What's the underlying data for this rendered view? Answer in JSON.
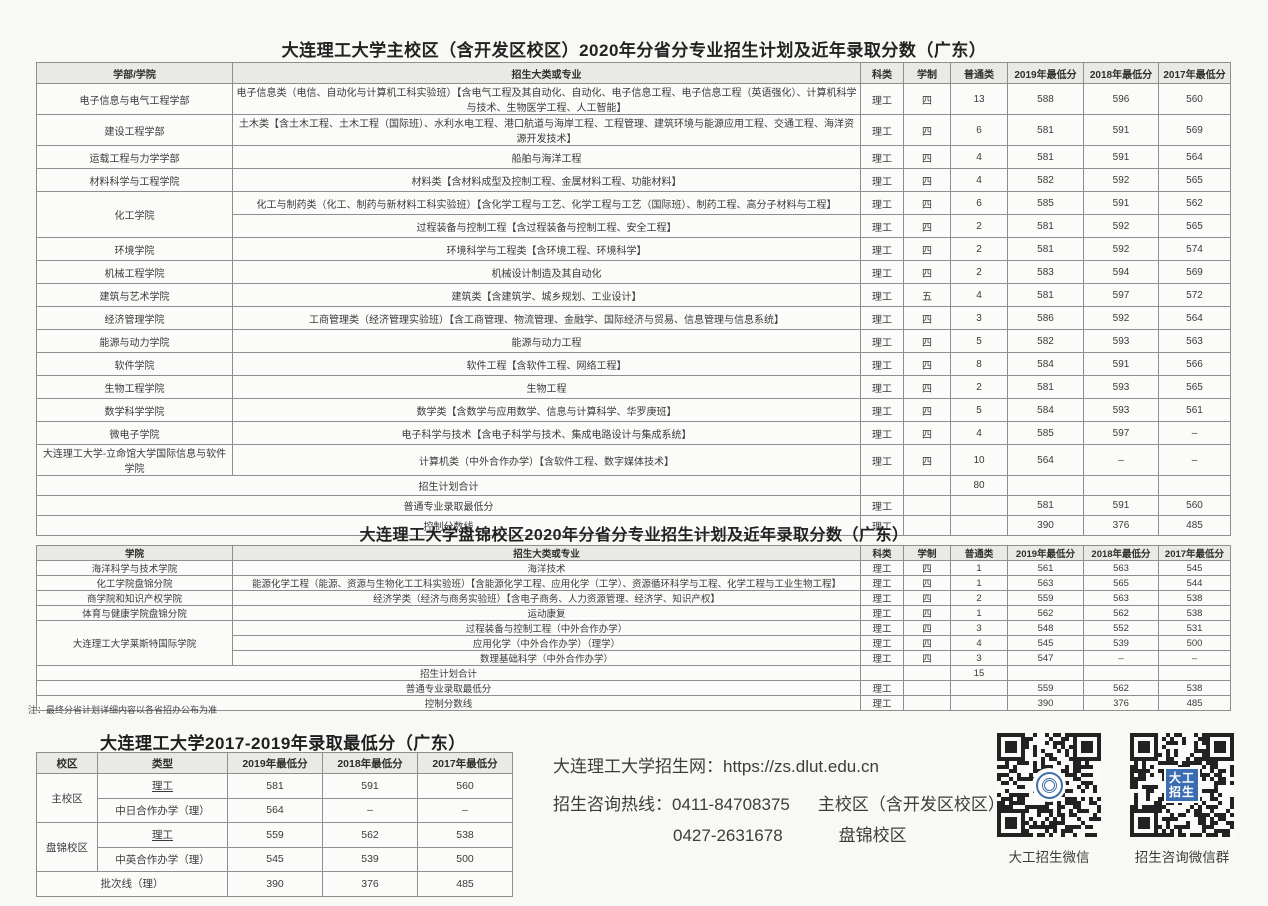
{
  "note": "注：最终分省计划详细内容以各省招办公布为准",
  "table1": {
    "title": "大连理工大学主校区（含开发区校区）2020年分省分专业招生计划及近年录取分数（广东）",
    "headers": [
      "学部/学院",
      "招生大类或专业",
      "科类",
      "学制",
      "普通类",
      "2019年最低分",
      "2018年最低分",
      "2017年最低分"
    ],
    "rows": [
      [
        "电子信息与电气工程学部",
        "电子信息类（电信、自动化与计算机工科实验班）【含电气工程及其自动化、自动化、电子信息工程、电子信息工程（英语强化）、计算机科学与技术、生物医学工程、人工智能】",
        "理工",
        "四",
        "13",
        "588",
        "596",
        "560"
      ],
      [
        "建设工程学部",
        "土木类【含土木工程、土木工程（国际班）、水利水电工程、港口航道与海岸工程、工程管理、建筑环境与能源应用工程、交通工程、海洋资源开发技术】",
        "理工",
        "四",
        "6",
        "581",
        "591",
        "569"
      ],
      [
        "运载工程与力学学部",
        "船舶与海洋工程",
        "理工",
        "四",
        "4",
        "581",
        "591",
        "564"
      ],
      [
        "材料科学与工程学院",
        "材料类【含材料成型及控制工程、金属材料工程、功能材料】",
        "理工",
        "四",
        "4",
        "582",
        "592",
        "565"
      ],
      [
        {
          "t": "化工学院",
          "rs": 2
        },
        "化工与制药类（化工、制药与新材料工科实验班）【含化学工程与工艺、化学工程与工艺（国际班）、制药工程、高分子材料与工程】",
        "理工",
        "四",
        "6",
        "585",
        "591",
        "562"
      ],
      [
        "过程装备与控制工程【含过程装备与控制工程、安全工程】",
        "理工",
        "四",
        "2",
        "581",
        "592",
        "565"
      ],
      [
        "环境学院",
        "环境科学与工程类【含环境工程、环境科学】",
        "理工",
        "四",
        "2",
        "581",
        "592",
        "574"
      ],
      [
        "机械工程学院",
        "机械设计制造及其自动化",
        "理工",
        "四",
        "2",
        "583",
        "594",
        "569"
      ],
      [
        "建筑与艺术学院",
        "建筑类【含建筑学、城乡规划、工业设计】",
        "理工",
        "五",
        "4",
        "581",
        "597",
        "572"
      ],
      [
        "经济管理学院",
        "工商管理类（经济管理实验班）【含工商管理、物流管理、金融学、国际经济与贸易、信息管理与信息系统】",
        "理工",
        "四",
        "3",
        "586",
        "592",
        "564"
      ],
      [
        "能源与动力学院",
        "能源与动力工程",
        "理工",
        "四",
        "5",
        "582",
        "593",
        "563"
      ],
      [
        "软件学院",
        "软件工程【含软件工程、网络工程】",
        "理工",
        "四",
        "8",
        "584",
        "591",
        "566"
      ],
      [
        "生物工程学院",
        "生物工程",
        "理工",
        "四",
        "2",
        "581",
        "593",
        "565"
      ],
      [
        "数学科学学院",
        "数学类【含数学与应用数学、信息与计算科学、华罗庚班】",
        "理工",
        "四",
        "5",
        "584",
        "593",
        "561"
      ],
      [
        "微电子学院",
        "电子科学与技术【含电子科学与技术、集成电路设计与集成系统】",
        "理工",
        "四",
        "4",
        "585",
        "597",
        "–"
      ],
      [
        "大连理工大学-立命馆大学国际信息与软件学院",
        "计算机类（中外合作办学）【含软件工程、数字媒体技术】",
        "理工",
        "四",
        "10",
        "564",
        "–",
        "–"
      ],
      [
        {
          "t": "招生计划合计",
          "cs": 2
        },
        "",
        "",
        "80",
        "",
        "",
        ""
      ],
      [
        {
          "t": "普通专业录取最低分",
          "cs": 2
        },
        "理工",
        "",
        "",
        "581",
        "591",
        "560"
      ],
      [
        {
          "t": "控制分数线",
          "cs": 2
        },
        "理工",
        "",
        "",
        "390",
        "376",
        "485"
      ]
    ]
  },
  "table2": {
    "title": "大连理工大学盘锦校区2020年分省分专业招生计划及近年录取分数（广东）",
    "headers": [
      "学院",
      "招生大类或专业",
      "科类",
      "学制",
      "普通类",
      "2019年最低分",
      "2018年最低分",
      "2017年最低分"
    ],
    "rows": [
      [
        "海洋科学与技术学院",
        "海洋技术",
        "理工",
        "四",
        "1",
        "561",
        "563",
        "545"
      ],
      [
        "化工学院盘锦分院",
        "能源化学工程（能源、资源与生物化工工科实验班）【含能源化学工程、应用化学（工学）、资源循环科学与工程、化学工程与工业生物工程】",
        "理工",
        "四",
        "1",
        "563",
        "565",
        "544"
      ],
      [
        "商学院和知识产权学院",
        "经济学类（经济与商务实验班）【含电子商务、人力资源管理、经济学、知识产权】",
        "理工",
        "四",
        "2",
        "559",
        "563",
        "538"
      ],
      [
        "体育与健康学院盘锦分院",
        "运动康复",
        "理工",
        "四",
        "1",
        "562",
        "562",
        "538"
      ],
      [
        {
          "t": "大连理工大学莱斯特国际学院",
          "rs": 3
        },
        "过程装备与控制工程（中外合作办学）",
        "理工",
        "四",
        "3",
        "548",
        "552",
        "531"
      ],
      [
        "应用化学（中外合作办学）（理学）",
        "理工",
        "四",
        "4",
        "545",
        "539",
        "500"
      ],
      [
        "数理基础科学（中外合作办学）",
        "理工",
        "四",
        "3",
        "547",
        "–",
        "–"
      ],
      [
        {
          "t": "招生计划合计",
          "cs": 2
        },
        "",
        "",
        "15",
        "",
        "",
        ""
      ],
      [
        {
          "t": "普通专业录取最低分",
          "cs": 2
        },
        "理工",
        "",
        "",
        "559",
        "562",
        "538"
      ],
      [
        {
          "t": "控制分数线",
          "cs": 2
        },
        "理工",
        "",
        "",
        "390",
        "376",
        "485"
      ]
    ]
  },
  "table3": {
    "title": "大连理工大学2017-2019年录取最低分（广东）",
    "headers": [
      "校区",
      "类型",
      "2019年最低分",
      "2018年最低分",
      "2017年最低分"
    ],
    "rows": [
      [
        {
          "t": "主校区",
          "rs": 2
        },
        {
          "t": "理工",
          "u": 1
        },
        "581",
        "591",
        "560"
      ],
      [
        "中日合作办学（理）",
        "564",
        "–",
        "–"
      ],
      [
        {
          "t": "盘锦校区",
          "rs": 2
        },
        {
          "t": "理工",
          "u": 1
        },
        "559",
        "562",
        "538"
      ],
      [
        "中英合作办学（理）",
        "545",
        "539",
        "500"
      ],
      [
        {
          "t": "批次线（理）",
          "cs": 2
        },
        "390",
        "376",
        "485"
      ]
    ]
  },
  "contact": {
    "website_line": "大连理工大学招生网：https://zs.dlut.edu.cn",
    "hotline_label": "招生咨询热线：",
    "phone1": "0411-84708375",
    "phone1_note": "主校区（含开发区校区）",
    "phone2": "0427-2631678",
    "phone2_note": "盘锦校区"
  },
  "qr": {
    "qr1_label": "大工招生微信",
    "qr2_label": "招生咨询微信群",
    "qr2_badge_line1": "大工",
    "qr2_badge_line2": "招生",
    "accent_blue": "#3a6db2"
  }
}
